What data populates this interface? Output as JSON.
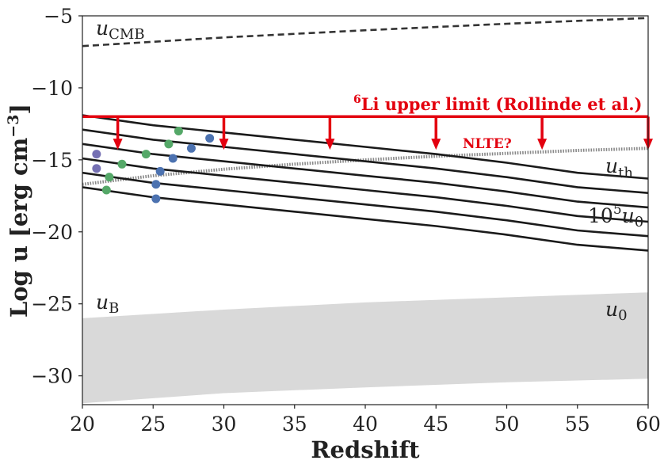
{
  "chart_data": {
    "type": "line",
    "title": "",
    "xlabel": "Redshift",
    "ylabel_parts": {
      "main": "Log u [erg cm",
      "sup": "−3",
      "close": "]"
    },
    "xlim": [
      20,
      60
    ],
    "ylim": [
      -32,
      -5
    ],
    "xticks": [
      20,
      25,
      30,
      35,
      40,
      45,
      50,
      55,
      60
    ],
    "yticks": [
      -30,
      -25,
      -20,
      -15,
      -10,
      -5
    ],
    "xtick_labels": [
      "20",
      "25",
      "30",
      "35",
      "40",
      "45",
      "50",
      "55",
      "60"
    ],
    "ytick_labels": [
      "−30",
      "−25",
      "−20",
      "−15",
      "−10",
      "−5"
    ],
    "grid": false,
    "series": [
      {
        "style": "dashed",
        "color": "#333333",
        "x": [
          20,
          30,
          40,
          50,
          60
        ],
        "y": [
          -7.1,
          -6.5,
          -6.0,
          -5.55,
          -5.15
        ]
      },
      {
        "style": "dotted",
        "color": "#888888",
        "x": [
          20,
          25,
          30,
          35,
          40,
          45,
          50,
          55,
          60
        ],
        "y": [
          -16.7,
          -16.1,
          -15.65,
          -15.3,
          -15.0,
          -14.75,
          -14.55,
          -14.35,
          -14.2
        ]
      },
      {
        "style": "solid",
        "color": "#1a1a1a",
        "x": [
          20,
          25,
          30,
          35,
          40,
          45,
          50,
          55,
          60
        ],
        "y": [
          -16.9,
          -17.6,
          -18.1,
          -18.6,
          -19.1,
          -19.6,
          -20.2,
          -20.9,
          -21.3
        ]
      },
      {
        "style": "solid",
        "color": "#1a1a1a",
        "x": [
          20,
          25,
          30,
          35,
          40,
          45,
          50,
          55,
          60
        ],
        "y": [
          -15.9,
          -16.6,
          -17.1,
          -17.6,
          -18.1,
          -18.6,
          -19.2,
          -19.9,
          -20.3
        ]
      },
      {
        "style": "solid",
        "color": "#1a1a1a",
        "x": [
          20,
          25,
          30,
          35,
          40,
          45,
          50,
          55,
          60
        ],
        "y": [
          -14.9,
          -15.6,
          -16.1,
          -16.6,
          -17.1,
          -17.6,
          -18.2,
          -18.9,
          -19.3
        ]
      },
      {
        "style": "solid",
        "color": "#1a1a1a",
        "x": [
          20,
          25,
          30,
          35,
          40,
          45,
          50,
          55,
          60
        ],
        "y": [
          -13.9,
          -14.6,
          -15.1,
          -15.6,
          -16.1,
          -16.6,
          -17.2,
          -17.9,
          -18.3
        ]
      },
      {
        "style": "solid",
        "color": "#1a1a1a",
        "x": [
          20,
          25,
          30,
          35,
          40,
          45,
          50,
          55,
          60
        ],
        "y": [
          -12.9,
          -13.6,
          -14.1,
          -14.6,
          -15.1,
          -15.6,
          -16.2,
          -16.9,
          -17.3
        ]
      },
      {
        "style": "solid",
        "color": "#1a1a1a",
        "x": [
          20,
          25,
          30,
          35,
          40,
          45,
          50,
          55,
          60
        ],
        "y": [
          -11.9,
          -12.6,
          -13.1,
          -13.6,
          -14.1,
          -14.6,
          -15.2,
          -15.9,
          -16.3
        ]
      }
    ],
    "band": {
      "color": "#d9d9d9",
      "x": [
        20,
        30,
        40,
        50,
        60
      ],
      "upper": [
        -26.0,
        -25.4,
        -24.9,
        -24.55,
        -24.2
      ],
      "lower": [
        -31.9,
        -31.2,
        -30.8,
        -30.45,
        -30.2
      ]
    },
    "upper_limit": {
      "y": -12.0,
      "color": "#e3000f",
      "arrow_x": [
        22.5,
        30.0,
        37.5,
        45.0,
        52.5,
        60.0
      ],
      "arrow_to": -14.3
    },
    "points": [
      {
        "x": 21.0,
        "y": -14.6,
        "color": "#7570b3"
      },
      {
        "x": 21.0,
        "y": -15.6,
        "color": "#7570b3"
      },
      {
        "x": 21.9,
        "y": -16.2,
        "color": "#55a868"
      },
      {
        "x": 21.7,
        "y": -17.1,
        "color": "#55a868"
      },
      {
        "x": 22.8,
        "y": -15.3,
        "color": "#55a868"
      },
      {
        "x": 24.5,
        "y": -14.6,
        "color": "#55a868"
      },
      {
        "x": 26.1,
        "y": -13.9,
        "color": "#55a868"
      },
      {
        "x": 26.8,
        "y": -13.0,
        "color": "#55a868"
      },
      {
        "x": 25.2,
        "y": -17.7,
        "color": "#4c72b0"
      },
      {
        "x": 25.2,
        "y": -16.7,
        "color": "#4c72b0"
      },
      {
        "x": 25.5,
        "y": -15.8,
        "color": "#4c72b0"
      },
      {
        "x": 26.4,
        "y": -14.9,
        "color": "#4c72b0"
      },
      {
        "x": 27.7,
        "y": -14.2,
        "color": "#4c72b0"
      },
      {
        "x": 29.0,
        "y": -13.5,
        "color": "#4c72b0"
      }
    ],
    "annotations": {
      "ucmb": {
        "base": "u",
        "sub": "CMB"
      },
      "uth": {
        "base": "u",
        "sub": "th"
      },
      "ub": {
        "base": "u",
        "sub": "B"
      },
      "u0": {
        "base": "u",
        "sub": "0"
      },
      "u5": {
        "coef": "10",
        "exp": "5",
        "base": "u",
        "sub": "0"
      },
      "li": {
        "sup": "6",
        "text": "Li upper limit (Rollinde et al.)"
      },
      "nlte": "NLTE?"
    }
  }
}
